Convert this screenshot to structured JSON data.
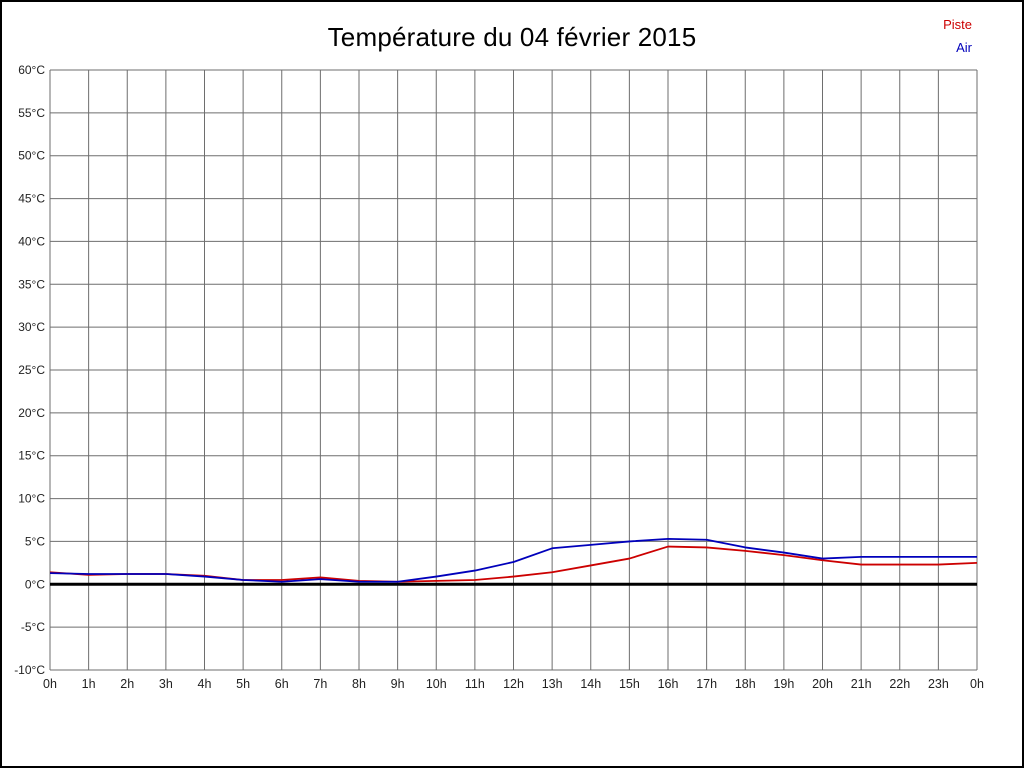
{
  "page": {
    "title": "Température du 04 février 2015"
  },
  "legend": {
    "items": [
      {
        "label": "Piste",
        "color": "#cc0000"
      },
      {
        "label": "Air",
        "color": "#0000bb"
      }
    ]
  },
  "chart_data": {
    "type": "line",
    "title": "Température du 04 février 2015",
    "xlabel": "",
    "ylabel": "",
    "ylim": [
      -10,
      60
    ],
    "grid": true,
    "legend_position": "top-right",
    "zero_line": 0,
    "x_labels": [
      "0h",
      "1h",
      "2h",
      "3h",
      "4h",
      "5h",
      "6h",
      "7h",
      "8h",
      "9h",
      "10h",
      "11h",
      "12h",
      "13h",
      "14h",
      "15h",
      "16h",
      "17h",
      "18h",
      "19h",
      "20h",
      "21h",
      "22h",
      "23h",
      "0h"
    ],
    "y_ticks": [
      60,
      55,
      50,
      45,
      40,
      35,
      30,
      25,
      20,
      15,
      10,
      5,
      0,
      -5,
      -10
    ],
    "y_tick_labels": [
      "60°C",
      "55°C",
      "50°C",
      "45°C",
      "40°C",
      "35°C",
      "30°C",
      "25°C",
      "20°C",
      "15°C",
      "10°C",
      "5°C",
      "0°C",
      "-5°C",
      "-10°C"
    ],
    "x_hours": [
      0,
      1,
      2,
      3,
      4,
      5,
      6,
      7,
      8,
      9,
      10,
      11,
      12,
      13,
      14,
      15,
      16,
      17,
      18,
      19,
      20,
      21,
      22,
      23,
      24
    ],
    "series": [
      {
        "name": "Piste",
        "color": "#cc0000",
        "values": [
          1.4,
          1.1,
          1.2,
          1.2,
          1.0,
          0.5,
          0.5,
          0.8,
          0.4,
          0.3,
          0.4,
          0.5,
          0.9,
          1.4,
          2.2,
          3.0,
          4.4,
          4.3,
          3.9,
          3.4,
          2.8,
          2.3,
          2.3,
          2.3,
          2.5
        ]
      },
      {
        "name": "Air",
        "color": "#0000bb",
        "values": [
          1.3,
          1.2,
          1.2,
          1.2,
          0.9,
          0.5,
          0.3,
          0.6,
          0.3,
          0.3,
          0.9,
          1.6,
          2.6,
          4.2,
          4.6,
          5.0,
          5.3,
          5.2,
          4.3,
          3.7,
          3.0,
          3.2,
          3.2,
          3.2,
          3.2
        ]
      }
    ]
  }
}
